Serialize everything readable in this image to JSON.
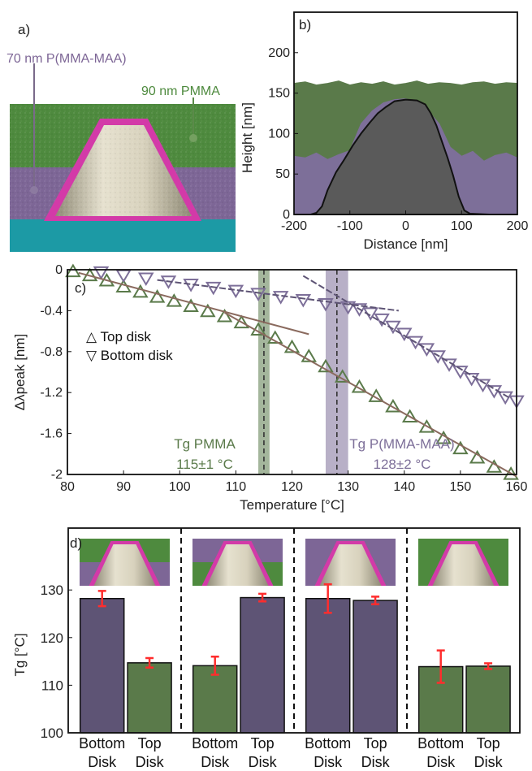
{
  "panel_a": {
    "label": "a)",
    "top_layer_label": "70 nm P(MMA-MAA)",
    "bottom_layer_label": "90 nm PMMA",
    "colors": {
      "green": "#4e8a3e",
      "purple": "#7d6696",
      "substrate": "#1c9aa5",
      "rim": "#d33aa8",
      "metal": "#cbc5b0"
    }
  },
  "colors": {
    "green": "#5a7a4a",
    "purple": "#7d6f99",
    "dark_purple": "#5e5475",
    "error": "#ff2d2d",
    "dark_fill": "#5a5a5a"
  },
  "chart_data": [
    {
      "panel": "b)",
      "type": "area",
      "xlabel": "Distance [nm]",
      "ylabel": "Height [nm]",
      "xlim": [
        -200,
        200
      ],
      "ylim": [
        0,
        250
      ],
      "xticks": [
        -200,
        -100,
        0,
        100,
        200
      ],
      "yticks": [
        0,
        50,
        100,
        150,
        200
      ],
      "series": [
        {
          "color": "#5a7a4a",
          "x": [
            -200,
            -180,
            -160,
            -140,
            -120,
            -100,
            -80,
            -60,
            -40,
            -20,
            0,
            20,
            40,
            60,
            80,
            100,
            120,
            140,
            160,
            180,
            200
          ],
          "y": [
            162,
            164,
            160,
            162,
            165,
            160,
            163,
            161,
            164,
            160,
            162,
            165,
            161,
            163,
            162,
            160,
            163,
            164,
            161,
            163,
            162
          ]
        },
        {
          "color": "#7d6f99",
          "x": [
            -200,
            -180,
            -160,
            -140,
            -120,
            -100,
            -80,
            -60,
            -40,
            -20,
            0,
            20,
            40,
            60,
            80,
            100,
            120,
            140,
            160,
            180,
            200
          ],
          "y": [
            72,
            70,
            76,
            68,
            74,
            79,
            112,
            128,
            138,
            142,
            143,
            138,
            128,
            112,
            83,
            72,
            78,
            66,
            73,
            76,
            70
          ]
        },
        {
          "color": "#5a5a5a",
          "x": [
            -200,
            -170,
            -160,
            -150,
            -140,
            -125,
            -110,
            -95,
            -80,
            -65,
            -50,
            -35,
            -20,
            0,
            20,
            35,
            45,
            55,
            65,
            75,
            85,
            95,
            105,
            115,
            150,
            200
          ],
          "y": [
            0,
            0,
            2,
            10,
            30,
            52,
            68,
            85,
            100,
            113,
            125,
            133,
            140,
            142,
            141,
            136,
            125,
            110,
            90,
            70,
            48,
            22,
            5,
            1,
            0,
            0
          ]
        }
      ]
    },
    {
      "panel": "c)",
      "type": "scatter",
      "xlabel": "Temperature [°C]",
      "ylabel": "Δλpeak [nm]",
      "xlim": [
        80,
        160
      ],
      "ylim": [
        -2,
        0
      ],
      "xticks": [
        80,
        90,
        100,
        110,
        120,
        130,
        140,
        150,
        160
      ],
      "yticks": [
        0,
        -0.4,
        -0.8,
        -1.2,
        -1.6,
        -2
      ],
      "legend": [
        {
          "symbol": "△",
          "label": "Top disk"
        },
        {
          "symbol": "▽",
          "label": "Bottom disk"
        }
      ],
      "series": [
        {
          "name": "Top disk",
          "marker": "up",
          "color": "#5a7a4a",
          "x": [
            81,
            84,
            87,
            90,
            93,
            96,
            99,
            102,
            105,
            108,
            111,
            114,
            117,
            120,
            123,
            126,
            129,
            132,
            135,
            138,
            141,
            144,
            147,
            150,
            153,
            156,
            159
          ],
          "y": [
            -0.02,
            -0.06,
            -0.11,
            -0.17,
            -0.22,
            -0.27,
            -0.31,
            -0.36,
            -0.41,
            -0.46,
            -0.52,
            -0.59,
            -0.67,
            -0.76,
            -0.85,
            -0.95,
            -1.05,
            -1.15,
            -1.24,
            -1.34,
            -1.44,
            -1.54,
            -1.65,
            -1.75,
            -1.84,
            -1.93,
            -2.0
          ]
        },
        {
          "name": "Bottom disk",
          "marker": "down",
          "color": "#7d6f99",
          "x": [
            86,
            90,
            94,
            98,
            102,
            106,
            110,
            114,
            118,
            122,
            126,
            130,
            132,
            134,
            136,
            138,
            140,
            142,
            144,
            146,
            148,
            150,
            152,
            154,
            156,
            158,
            160
          ],
          "y": [
            -0.02,
            -0.05,
            -0.08,
            -0.11,
            -0.14,
            -0.17,
            -0.2,
            -0.23,
            -0.26,
            -0.29,
            -0.33,
            -0.36,
            -0.38,
            -0.42,
            -0.48,
            -0.55,
            -0.62,
            -0.7,
            -0.77,
            -0.84,
            -0.92,
            -0.99,
            -1.06,
            -1.12,
            -1.18,
            -1.24,
            -1.28
          ]
        }
      ],
      "fit_lines": [
        {
          "color": "#8a6a5e",
          "x": [
            82,
            123
          ],
          "y": [
            -0.03,
            -0.63
          ]
        },
        {
          "color": "#8a6a5e",
          "x": [
            108,
            160
          ],
          "y": [
            -0.42,
            -2.02
          ]
        },
        {
          "color": "#5e5475",
          "x": [
            96,
            139
          ],
          "y": [
            -0.1,
            -0.4
          ]
        },
        {
          "color": "#5e5475",
          "x": [
            122,
            159
          ],
          "y": [
            -0.06,
            -1.26
          ]
        }
      ],
      "bands": [
        {
          "center": 115,
          "half_width": 1,
          "color": "#5a7a4a",
          "label_title": "Tg PMMA",
          "label_value": "115±1 °C"
        },
        {
          "center": 128,
          "half_width": 2,
          "color": "#7d6f99",
          "label_title": "Tg P(MMA-MAA)",
          "label_value": "128±2 °C"
        }
      ]
    },
    {
      "panel": "d)",
      "type": "bar",
      "ylabel": "Tg [°C]",
      "ylim": [
        100,
        143
      ],
      "yticks": [
        100,
        110,
        120,
        130
      ],
      "categories": [
        [
          "Bottom",
          "Disk"
        ],
        [
          "Top",
          "Disk"
        ],
        [
          "Bottom",
          "Disk"
        ],
        [
          "Top",
          "Disk"
        ],
        [
          "Bottom",
          "Disk"
        ],
        [
          "Top",
          "Disk"
        ],
        [
          "Bottom",
          "Disk"
        ],
        [
          "Top",
          "Disk"
        ]
      ],
      "values": [
        128.2,
        114.7,
        114.1,
        128.4,
        128.2,
        127.8,
        113.9,
        114.0
      ],
      "errors": [
        1.6,
        1.0,
        1.9,
        0.8,
        3.0,
        0.8,
        3.4,
        0.6
      ],
      "bar_colors": [
        "#5e5475",
        "#5a7a4a",
        "#5a7a4a",
        "#5e5475",
        "#5e5475",
        "#5e5475",
        "#5a7a4a",
        "#5a7a4a"
      ],
      "insets": [
        {
          "upper": "green",
          "lower": "purple"
        },
        {
          "upper": "purple",
          "lower": "green"
        },
        {
          "upper": "purple",
          "lower": "purple"
        },
        {
          "upper": "green",
          "lower": "green"
        }
      ]
    }
  ]
}
